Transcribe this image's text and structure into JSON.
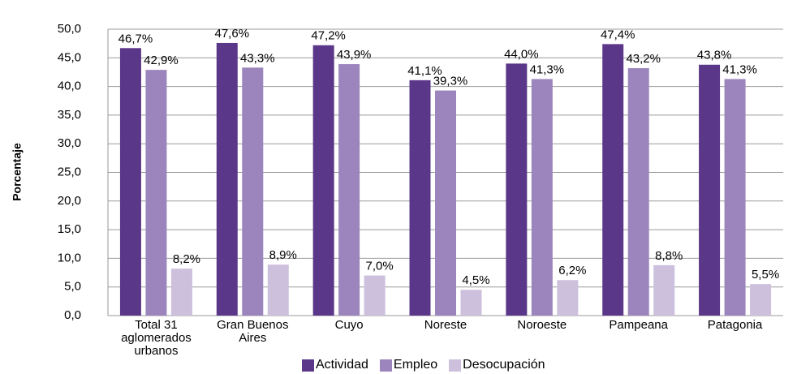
{
  "chart_data": {
    "type": "bar",
    "y_label": "Porcentaje",
    "categories": [
      "Total 31 aglomerados urbanos",
      "Gran Buenos Aires",
      "Cuyo",
      "Noreste",
      "Noroeste",
      "Pampeana",
      "Patagonia"
    ],
    "series": [
      {
        "name": "Actividad",
        "color": "#5b3789",
        "values": [
          46.7,
          47.6,
          47.2,
          41.1,
          44.0,
          47.4,
          43.8
        ],
        "value_labels": [
          "46,7%",
          "47,6%",
          "47,2%",
          "41,1%",
          "44,0%",
          "47,4%",
          "43,8%"
        ]
      },
      {
        "name": "Empleo",
        "color": "#9c85bc",
        "values": [
          42.9,
          43.3,
          43.9,
          39.3,
          41.3,
          43.2,
          41.3
        ],
        "value_labels": [
          "42,9%",
          "43,3%",
          "43,9%",
          "39,3%",
          "41,3%",
          "43,2%",
          "41,3%"
        ]
      },
      {
        "name": "Desocupación",
        "color": "#cdc0dd",
        "values": [
          8.2,
          8.9,
          7.0,
          4.5,
          6.2,
          8.8,
          5.5
        ],
        "value_labels": [
          "8,2%",
          "8,9%",
          "7,0%",
          "4,5%",
          "6,2%",
          "8,8%",
          "5,5%"
        ]
      }
    ],
    "ylim": [
      0,
      50
    ],
    "yticks": [
      {
        "value": 0,
        "label": "0,0"
      },
      {
        "value": 5,
        "label": "5,0"
      },
      {
        "value": 10,
        "label": "10,0"
      },
      {
        "value": 15,
        "label": "15,0"
      },
      {
        "value": 20,
        "label": "20,0"
      },
      {
        "value": 25,
        "label": "25,0"
      },
      {
        "value": 30,
        "label": "30,0"
      },
      {
        "value": 35,
        "label": "35,0"
      },
      {
        "value": 40,
        "label": "40,0"
      },
      {
        "value": 45,
        "label": "45,0"
      },
      {
        "value": 50,
        "label": "50,0"
      }
    ],
    "grid": true,
    "legend": "bottom"
  }
}
